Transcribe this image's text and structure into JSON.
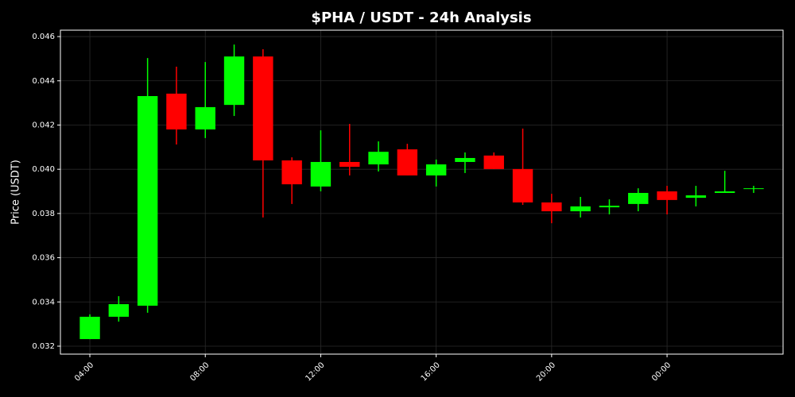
{
  "chart_data": {
    "type": "candlestick",
    "title": "$PHA / USDT - 24h Analysis",
    "y_label": "Price (USDT)",
    "x": [
      4,
      5,
      6,
      7,
      8,
      9,
      10,
      11,
      12,
      13,
      14,
      15,
      16,
      17,
      18,
      19,
      20,
      21,
      22,
      23,
      24,
      25,
      26,
      27
    ],
    "open": [
      0.03232,
      0.03333,
      0.03383,
      0.04342,
      0.0418,
      0.04291,
      0.0451,
      0.0404,
      0.03922,
      0.04033,
      0.04022,
      0.0409,
      0.03972,
      0.04033,
      0.04062,
      0.04001,
      0.0385,
      0.0381,
      0.03828,
      0.03843,
      0.039,
      0.03871,
      0.03893,
      0.03911
    ],
    "high": [
      0.03344,
      0.03426,
      0.04503,
      0.04464,
      0.04485,
      0.04564,
      0.04543,
      0.04054,
      0.04176,
      0.04205,
      0.04126,
      0.04115,
      0.04044,
      0.04076,
      0.04076,
      0.04184,
      0.03889,
      0.03875,
      0.03864,
      0.03914,
      0.03925,
      0.03925,
      0.03993,
      0.03925
    ],
    "low": [
      0.03232,
      0.03311,
      0.03351,
      0.04112,
      0.04141,
      0.04241,
      0.03782,
      0.03843,
      0.039,
      0.03972,
      0.0399,
      0.03972,
      0.03922,
      0.03983,
      0.04001,
      0.03839,
      0.03756,
      0.03782,
      0.03796,
      0.0381,
      0.03796,
      0.03832,
      0.03893,
      0.03893
    ],
    "close": [
      0.03333,
      0.0339,
      0.04331,
      0.0418,
      0.04281,
      0.0451,
      0.0404,
      0.03932,
      0.04033,
      0.04011,
      0.04079,
      0.03972,
      0.04022,
      0.04051,
      0.04001,
      0.0385,
      0.0381,
      0.03832,
      0.03835,
      0.03893,
      0.03861,
      0.03882,
      0.039,
      0.03914
    ],
    "up_color": "#00ff00",
    "down_color": "#ff0000",
    "xlim": [
      2.98,
      28.02
    ],
    "xticks": [
      {
        "value": 4,
        "label": "04:00"
      },
      {
        "value": 8,
        "label": "08:00"
      },
      {
        "value": 12,
        "label": "12:00"
      },
      {
        "value": 16,
        "label": "16:00"
      },
      {
        "value": 20,
        "label": "20:00"
      },
      {
        "value": 24,
        "label": "00:00"
      }
    ],
    "ylim": [
      0.03164,
      0.04629
    ],
    "yticks": [
      {
        "value": 0.032,
        "label": "0.032"
      },
      {
        "value": 0.034,
        "label": "0.034"
      },
      {
        "value": 0.036,
        "label": "0.036"
      },
      {
        "value": 0.038,
        "label": "0.038"
      },
      {
        "value": 0.04,
        "label": "0.040"
      },
      {
        "value": 0.042,
        "label": "0.042"
      },
      {
        "value": 0.044,
        "label": "0.044"
      },
      {
        "value": 0.046,
        "label": "0.046"
      }
    ],
    "grid": true
  }
}
